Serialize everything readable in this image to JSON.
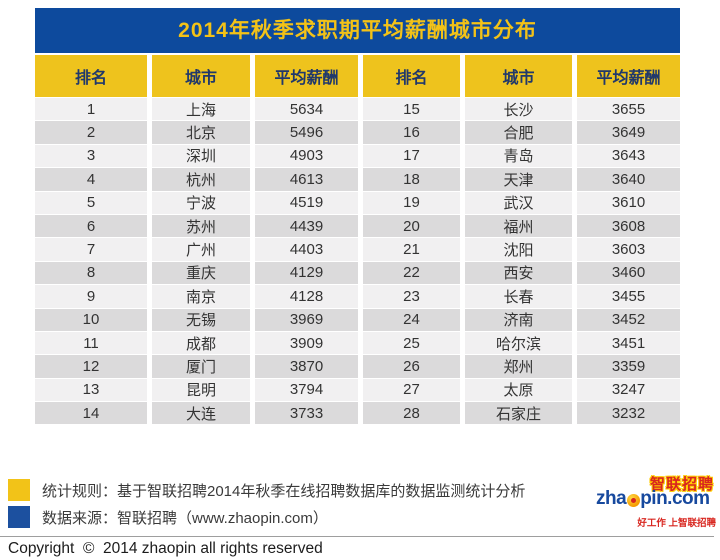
{
  "title": "2014年秋季求职期平均薪酬城市分布",
  "table": {
    "headers": [
      "排名",
      "城市",
      "平均薪酬",
      "排名",
      "城市",
      "平均薪酬"
    ],
    "rows": [
      [
        "1",
        "上海",
        "5634",
        "15",
        "长沙",
        "3655"
      ],
      [
        "2",
        "北京",
        "5496",
        "16",
        "合肥",
        "3649"
      ],
      [
        "3",
        "深圳",
        "4903",
        "17",
        "青岛",
        "3643"
      ],
      [
        "4",
        "杭州",
        "4613",
        "18",
        "天津",
        "3640"
      ],
      [
        "5",
        "宁波",
        "4519",
        "19",
        "武汉",
        "3610"
      ],
      [
        "6",
        "苏州",
        "4439",
        "20",
        "福州",
        "3608"
      ],
      [
        "7",
        "广州",
        "4403",
        "21",
        "沈阳",
        "3603"
      ],
      [
        "8",
        "重庆",
        "4129",
        "22",
        "西安",
        "3460"
      ],
      [
        "9",
        "南京",
        "4128",
        "23",
        "长春",
        "3455"
      ],
      [
        "10",
        "无锡",
        "3969",
        "24",
        "济南",
        "3452"
      ],
      [
        "11",
        "成都",
        "3909",
        "25",
        "哈尔滨",
        "3451"
      ],
      [
        "12",
        "厦门",
        "3870",
        "26",
        "郑州",
        "3359"
      ],
      [
        "13",
        "昆明",
        "3794",
        "27",
        "太原",
        "3247"
      ],
      [
        "14",
        "大连",
        "3733",
        "28",
        "石家庄",
        "3232"
      ]
    ]
  },
  "chart_data": {
    "type": "table",
    "title": "2014年秋季求职期平均薪酬城市分布",
    "columns": [
      "排名",
      "城市",
      "平均薪酬"
    ],
    "rows": [
      [
        1,
        "上海",
        5634
      ],
      [
        2,
        "北京",
        5496
      ],
      [
        3,
        "深圳",
        4903
      ],
      [
        4,
        "杭州",
        4613
      ],
      [
        5,
        "宁波",
        4519
      ],
      [
        6,
        "苏州",
        4439
      ],
      [
        7,
        "广州",
        4403
      ],
      [
        8,
        "重庆",
        4129
      ],
      [
        9,
        "南京",
        4128
      ],
      [
        10,
        "无锡",
        3969
      ],
      [
        11,
        "成都",
        3909
      ],
      [
        12,
        "厦门",
        3870
      ],
      [
        13,
        "昆明",
        3794
      ],
      [
        14,
        "大连",
        3733
      ],
      [
        15,
        "长沙",
        3655
      ],
      [
        16,
        "合肥",
        3649
      ],
      [
        17,
        "青岛",
        3643
      ],
      [
        18,
        "天津",
        3640
      ],
      [
        19,
        "武汉",
        3610
      ],
      [
        20,
        "福州",
        3608
      ],
      [
        21,
        "沈阳",
        3603
      ],
      [
        22,
        "西安",
        3460
      ],
      [
        23,
        "长春",
        3455
      ],
      [
        24,
        "济南",
        3452
      ],
      [
        25,
        "哈尔滨",
        3451
      ],
      [
        26,
        "郑州",
        3359
      ],
      [
        27,
        "太原",
        3247
      ],
      [
        28,
        "石家庄",
        3232
      ]
    ],
    "layout": "two-pane, ranks 1-14 left, 15-28 right"
  },
  "legend": {
    "rule_label": "统计规则：基于智联招聘2014年秋季在线招聘数据库的数据监测统计分析",
    "source_label": "数据来源：智联招聘（www.zhaopin.com）",
    "rule_swatch_color": "#f2c318",
    "source_swatch_color": "#1c509f"
  },
  "logo": {
    "cn": "智联招聘",
    "en_prefix": "zha",
    "en_suffix": "pin.com",
    "tagline": "好工作 上智联招聘"
  },
  "copyright": "Copyright  ©  2014 zhaopin all rights reserved",
  "colors": {
    "title_bg": "#0d4a9d",
    "title_text": "#f3c217",
    "header_bg": "#eec31d",
    "header_text": "#20386b",
    "row_light": "#f1f0f1",
    "row_dark": "#dbdadb"
  }
}
